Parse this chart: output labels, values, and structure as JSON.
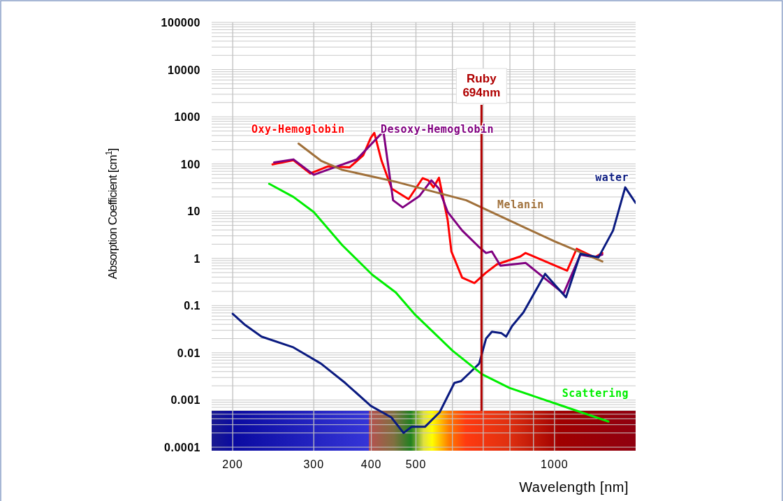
{
  "chart_data": {
    "type": "line",
    "xlabel": "Wavelength [nm]",
    "ylabel": "Absorption Coefficient [cm$^{1}$]",
    "log": "xy",
    "xlim": [
      180,
      1500
    ],
    "ylim": [
      0.0001,
      100000
    ],
    "xticks": [
      200,
      300,
      400,
      500,
      {
        "value": 600,
        "label": null
      },
      {
        "value": 700,
        "label": null
      },
      {
        "value": 800,
        "label": null
      },
      {
        "value": 900,
        "label": null
      },
      1000
    ],
    "yticks": [
      {
        "value": 0.0001,
        "label": "0.0001"
      },
      {
        "value": 0.001,
        "label": "0.001"
      },
      {
        "value": 0.01,
        "label": "0.01"
      },
      {
        "value": 0.1,
        "label": "0.1"
      },
      1,
      10,
      100,
      1000,
      10000,
      100000
    ],
    "grid": true,
    "marker": "none",
    "line_style": "solid",
    "series": [
      {
        "name": "Oxy-Hemoglobin",
        "color": "#ff0000",
        "x": [
          244,
          271,
          295,
          322,
          359,
          384,
          399,
          406,
          421,
          443,
          482,
          517,
          532,
          546,
          561,
          586,
          597,
          630,
          670,
          710,
          750,
          843,
          865,
          1065,
          1117,
          1222,
          1270
        ],
        "values": [
          98,
          120,
          63,
          89,
          85,
          152,
          360,
          455,
          117,
          30,
          18,
          50,
          45,
          32,
          51,
          6.5,
          1.4,
          0.39,
          0.3,
          0.5,
          0.75,
          1.1,
          1.3,
          0.55,
          1.6,
          1.05,
          1.3
        ]
      },
      {
        "name": "Desoxy-Hemoglobin",
        "color": "#800080",
        "x": [
          246,
          271,
          300,
          337,
          372,
          425,
          446,
          468,
          509,
          540,
          561,
          586,
          630,
          683,
          710,
          731,
          763,
          866,
          1046,
          1138,
          1222,
          1270
        ],
        "values": [
          108,
          125,
          59,
          89,
          125,
          490,
          17,
          12,
          21,
          45,
          30,
          9.6,
          3.9,
          1.8,
          1.3,
          1.4,
          0.7,
          0.8,
          0.18,
          1.2,
          1.05,
          1.2
        ]
      },
      {
        "name": "Melanin",
        "color": "#a0703a",
        "x": [
          278,
          311,
          346,
          452,
          643,
          694,
          808,
          1000,
          1270
        ],
        "values": [
          270,
          117,
          75,
          42,
          17,
          12,
          6,
          2.3,
          0.86
        ]
      },
      {
        "name": "water",
        "color": "#0a1a80",
        "x": [
          200,
          212,
          231,
          271,
          311,
          351,
          399,
          442,
          470,
          489,
          523,
          563,
          606,
          626,
          655,
          686,
          710,
          731,
          767,
          785,
          809,
          856,
          954,
          1059,
          1138,
          1246,
          1340,
          1424,
          1500
        ],
        "values": [
          0.067,
          0.04,
          0.022,
          0.013,
          0.0059,
          0.0023,
          0.00075,
          0.00043,
          0.0002,
          0.00027,
          0.00027,
          0.00055,
          0.0023,
          0.0025,
          0.0038,
          0.0059,
          0.02,
          0.028,
          0.026,
          0.022,
          0.037,
          0.072,
          0.47,
          0.15,
          1.25,
          1.05,
          3.9,
          32,
          15
        ]
      },
      {
        "name": "Scattering",
        "color": "#00ee00",
        "x": [
          240,
          271,
          300,
          346,
          402,
          452,
          498,
          601,
          696,
          798,
          1028,
          1309
        ],
        "values": [
          38,
          20,
          9.6,
          1.9,
          0.45,
          0.19,
          0.064,
          0.011,
          0.0035,
          0.0018,
          0.00078,
          0.00035
        ]
      }
    ],
    "ref_lines": [
      {
        "axis": "x",
        "value": 694,
        "label": "Ruby\n694nm",
        "color": "#b00000"
      }
    ]
  }
}
